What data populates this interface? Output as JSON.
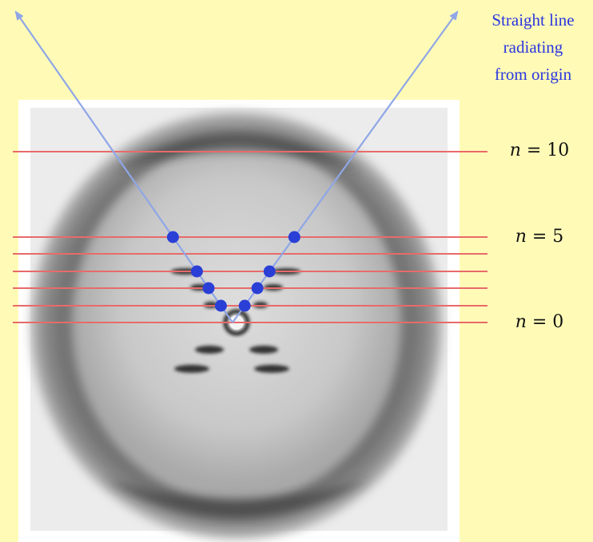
{
  "annotation": {
    "lines": [
      "Straight line",
      "radiating",
      "from origin"
    ]
  },
  "layer_lines": {
    "labels": [
      {
        "var": "n",
        "eq": "= 10"
      },
      {
        "var": "n",
        "eq": "= 5"
      },
      {
        "var": "n",
        "eq": "= 0"
      }
    ],
    "line_color": "#e86a6a"
  },
  "colors": {
    "background": "#fffbb7",
    "arrow": "#8fa6e6",
    "dot": "#2a3fd6",
    "text_accent": "#2b36e0"
  },
  "image": {
    "description_icon": "x-ray-diffraction-photo"
  }
}
